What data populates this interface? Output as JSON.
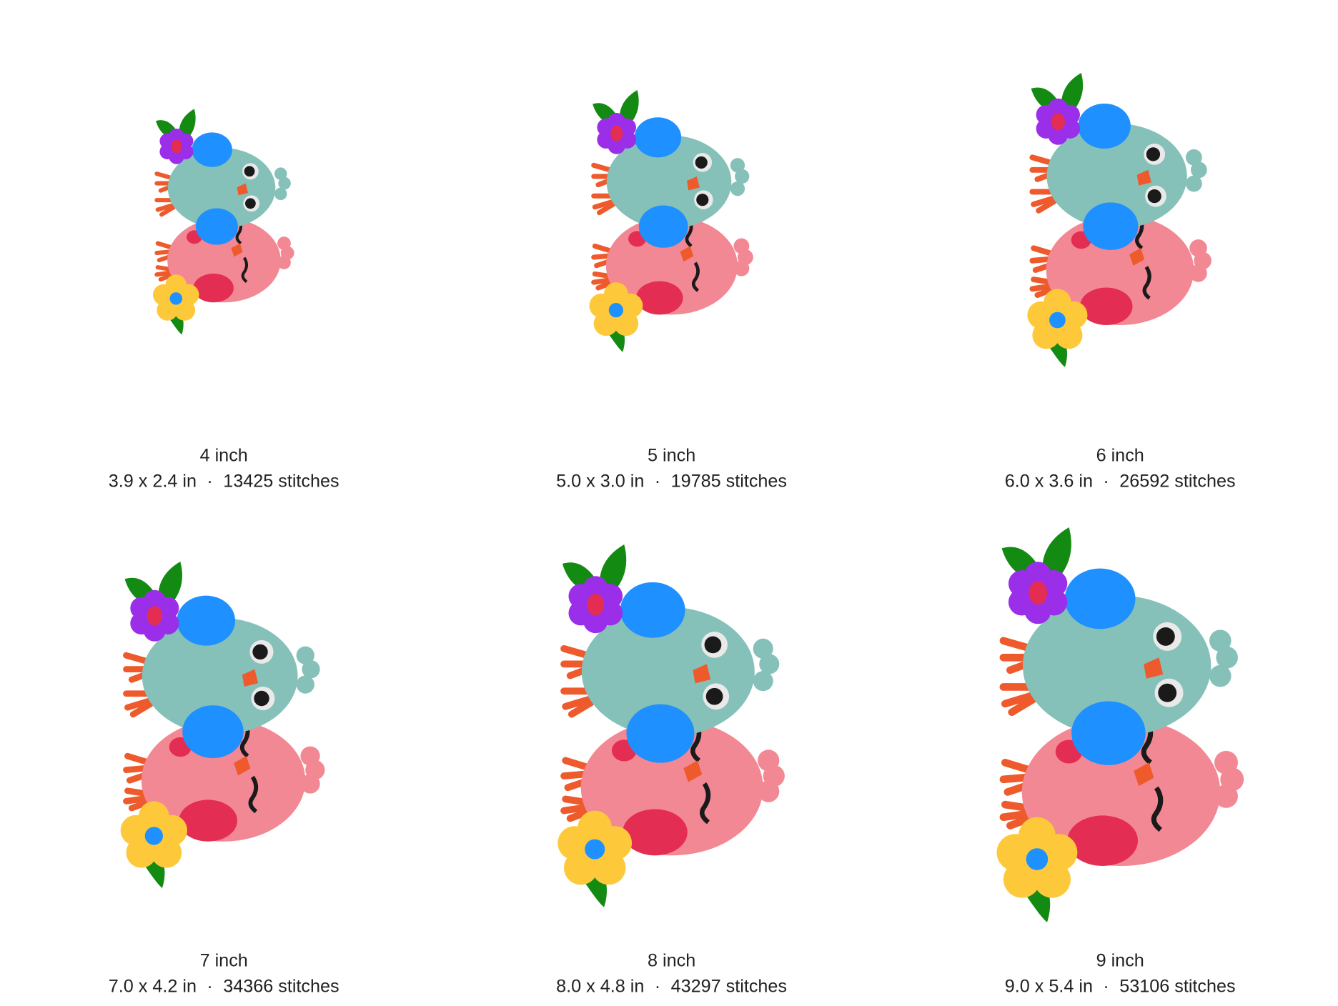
{
  "separator": "·",
  "items": [
    {
      "size": "4 inch",
      "dimensions": "3.9 x 2.4 in",
      "stitches": "13425 stitches"
    },
    {
      "size": "5 inch",
      "dimensions": "5.0 x 3.0 in",
      "stitches": "19785 stitches"
    },
    {
      "size": "6 inch",
      "dimensions": "6.0 x 3.6 in",
      "stitches": "26592 stitches"
    },
    {
      "size": "7 inch",
      "dimensions": "7.0 x 4.2 in",
      "stitches": "34366 stitches"
    },
    {
      "size": "8 inch",
      "dimensions": "8.0 x 4.8 in",
      "stitches": "43297 stitches"
    },
    {
      "size": "9 inch",
      "dimensions": "9.0 x 5.4 in",
      "stitches": "53106 stitches"
    }
  ]
}
